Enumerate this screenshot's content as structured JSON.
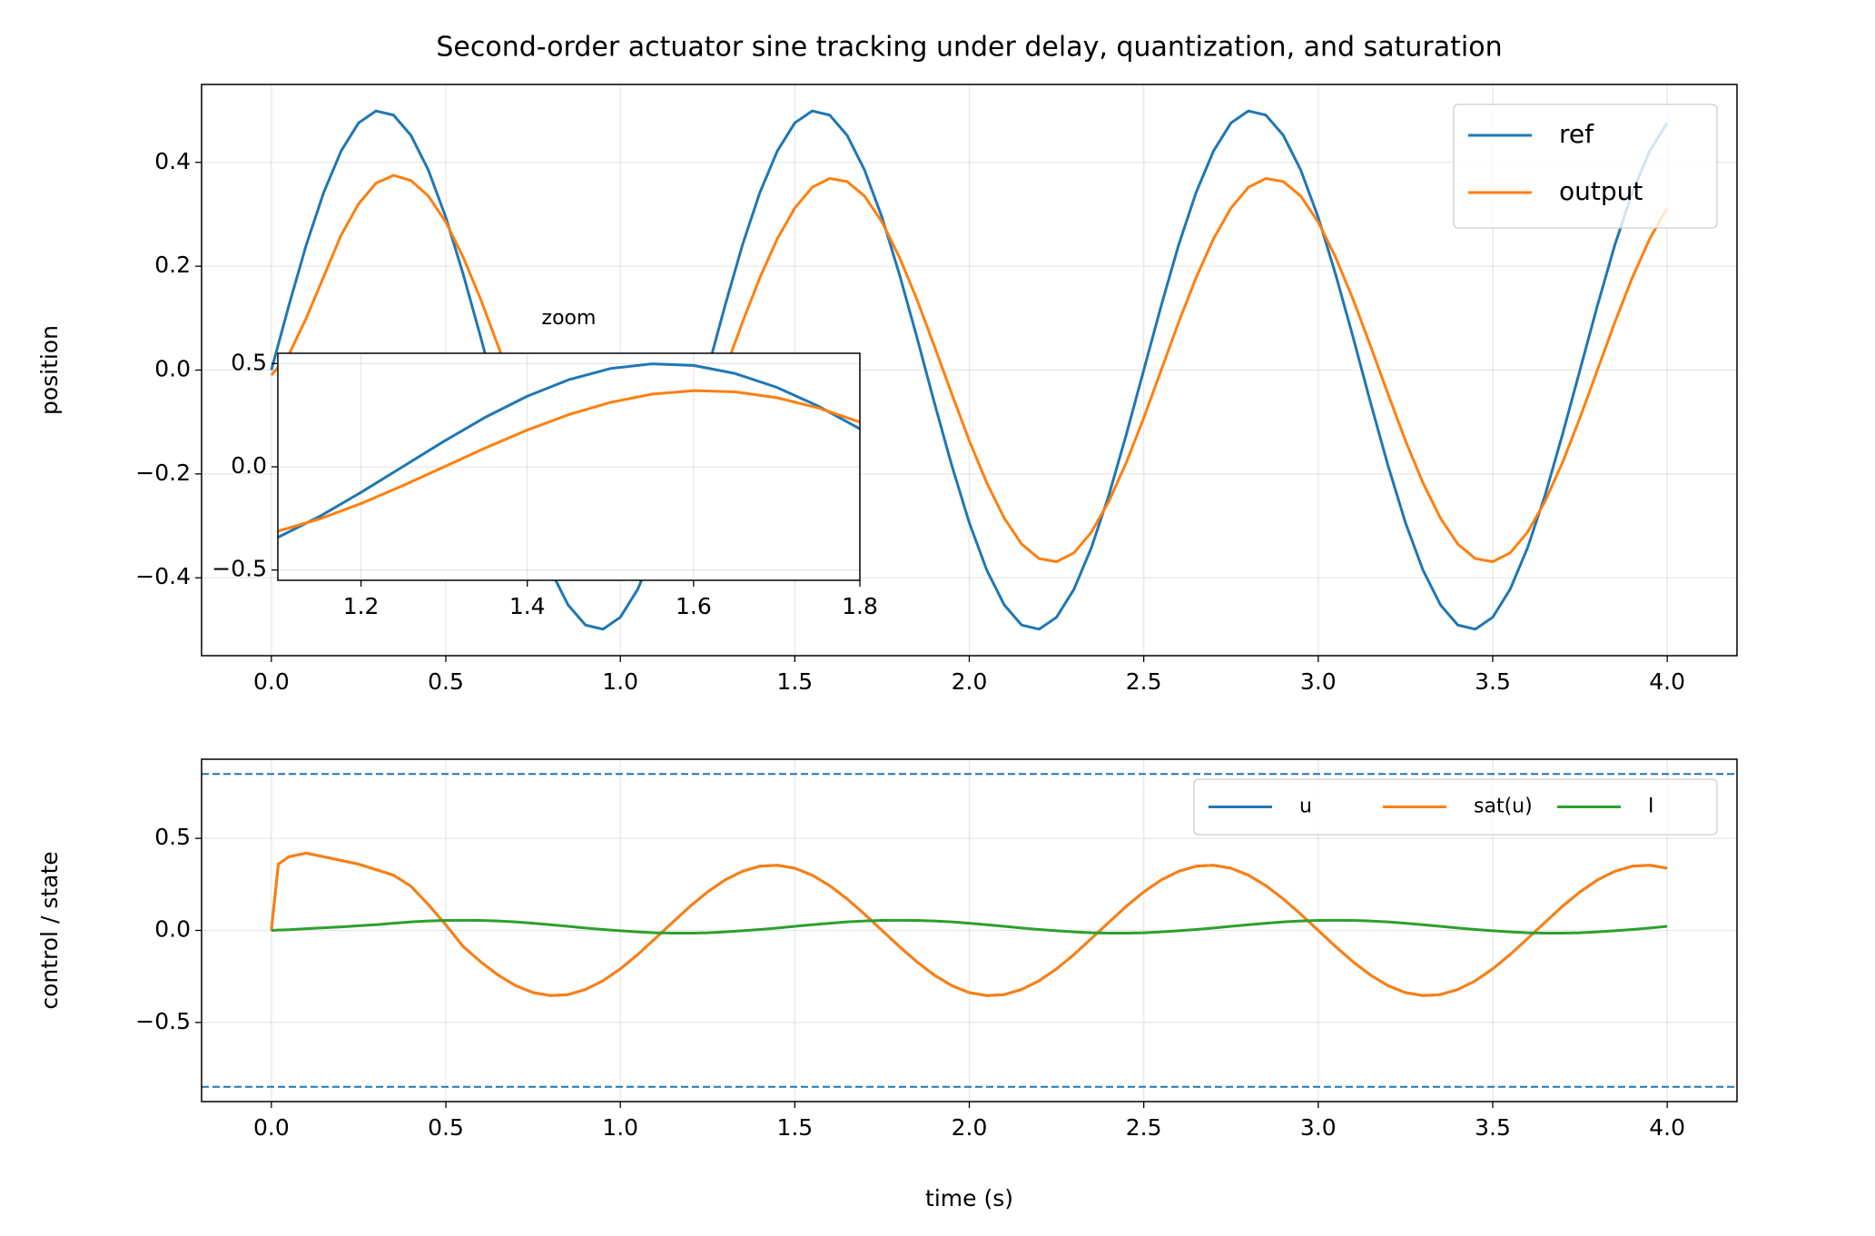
{
  "chart_data": [
    {
      "type": "line",
      "title": "Second-order actuator sine tracking under delay, quantization, and saturation",
      "ylabel": "position",
      "x": [
        0,
        0.05,
        0.1,
        0.15,
        0.2,
        0.25,
        0.3,
        0.35,
        0.4,
        0.45,
        0.5,
        0.55,
        0.6,
        0.65,
        0.7,
        0.75,
        0.8,
        0.85,
        0.9,
        0.95,
        1,
        1.05,
        1.1,
        1.15,
        1.2,
        1.25,
        1.3,
        1.35,
        1.4,
        1.45,
        1.5,
        1.55,
        1.6,
        1.65,
        1.7,
        1.75,
        1.8,
        1.85,
        1.9,
        1.95,
        2,
        2.05,
        2.1,
        2.15,
        2.2,
        2.25,
        2.3,
        2.35,
        2.4,
        2.45,
        2.5,
        2.55,
        2.6,
        2.65,
        2.7,
        2.75,
        2.8,
        2.85,
        2.9,
        2.95,
        3,
        3.05,
        3.1,
        3.15,
        3.2,
        3.25,
        3.3,
        3.35,
        3.4,
        3.45,
        3.5,
        3.55,
        3.6,
        3.65,
        3.7,
        3.75,
        3.8,
        3.85,
        3.9,
        3.95,
        4
      ],
      "series": [
        {
          "name": "ref",
          "color": "#1f77b4",
          "values": [
            0,
            0.124,
            0.241,
            0.342,
            0.422,
            0.476,
            0.499,
            0.491,
            0.452,
            0.385,
            0.294,
            0.184,
            0.063,
            -0.063,
            -0.184,
            -0.294,
            -0.385,
            -0.452,
            -0.491,
            -0.499,
            -0.476,
            -0.422,
            -0.342,
            -0.241,
            -0.124,
            0,
            0.124,
            0.241,
            0.342,
            0.422,
            0.476,
            0.499,
            0.491,
            0.452,
            0.385,
            0.294,
            0.184,
            0.063,
            -0.063,
            -0.184,
            -0.294,
            -0.385,
            -0.452,
            -0.491,
            -0.499,
            -0.476,
            -0.422,
            -0.342,
            -0.241,
            -0.124,
            0,
            0.124,
            0.241,
            0.342,
            0.422,
            0.476,
            0.499,
            0.491,
            0.452,
            0.385,
            0.294,
            0.184,
            0.063,
            -0.063,
            -0.184,
            -0.294,
            -0.385,
            -0.452,
            -0.491,
            -0.499,
            -0.476,
            -0.422,
            -0.342,
            -0.241,
            -0.124,
            0,
            0.124,
            0.241,
            0.342,
            0.422,
            0.476
          ]
        },
        {
          "name": "output",
          "color": "#ff7f0e",
          "values": [
            -0.01,
            0.03,
            0.1,
            0.18,
            0.26,
            0.32,
            0.36,
            0.375,
            0.365,
            0.335,
            0.285,
            0.217,
            0.136,
            0.046,
            -0.046,
            -0.136,
            -0.217,
            -0.285,
            -0.335,
            -0.363,
            -0.369,
            -0.352,
            -0.312,
            -0.253,
            -0.178,
            -0.092,
            0,
            0.092,
            0.178,
            0.253,
            0.312,
            0.352,
            0.369,
            0.363,
            0.335,
            0.285,
            0.217,
            0.136,
            0.046,
            -0.046,
            -0.136,
            -0.217,
            -0.285,
            -0.335,
            -0.363,
            -0.369,
            -0.352,
            -0.312,
            -0.253,
            -0.178,
            -0.092,
            0,
            0.092,
            0.178,
            0.253,
            0.312,
            0.352,
            0.369,
            0.363,
            0.335,
            0.285,
            0.217,
            0.136,
            0.046,
            -0.046,
            -0.136,
            -0.217,
            -0.285,
            -0.335,
            -0.363,
            -0.369,
            -0.352,
            -0.312,
            -0.253,
            -0.178,
            -0.092,
            0,
            0.092,
            0.178,
            0.253,
            0.312
          ]
        }
      ],
      "xlim": [
        -0.2,
        4.2
      ],
      "ylim": [
        -0.55,
        0.55
      ],
      "xticks": [
        {
          "value": 0,
          "label": "0.0"
        },
        0.5,
        {
          "value": 1,
          "label": "1.0"
        },
        1.5,
        {
          "value": 2,
          "label": "2.0"
        },
        2.5,
        {
          "value": 3,
          "label": "3.0"
        },
        3.5,
        {
          "value": 4,
          "label": "4.0"
        }
      ],
      "yticks": [
        {
          "value": -0.4,
          "label": "−0.4"
        },
        {
          "value": -0.2,
          "label": "−0.2"
        },
        {
          "value": 0,
          "label": "0.0"
        },
        0.2,
        0.4
      ],
      "grid": true,
      "legend": "upper right"
    },
    {
      "type": "line",
      "title": "zoom",
      "x": [
        1.1,
        1.15,
        1.2,
        1.25,
        1.3,
        1.35,
        1.4,
        1.45,
        1.5,
        1.55,
        1.6,
        1.65,
        1.7,
        1.75,
        1.8
      ],
      "series": [
        {
          "name": "ref",
          "color": "#1f77b4",
          "values": [
            -0.342,
            -0.241,
            -0.124,
            0,
            0.124,
            0.241,
            0.342,
            0.422,
            0.476,
            0.499,
            0.491,
            0.452,
            0.385,
            0.294,
            0.184
          ]
        },
        {
          "name": "output",
          "color": "#ff7f0e",
          "values": [
            -0.312,
            -0.253,
            -0.178,
            -0.092,
            0,
            0.092,
            0.178,
            0.253,
            0.312,
            0.352,
            0.369,
            0.363,
            0.335,
            0.285,
            0.217
          ]
        }
      ],
      "xlim": [
        1.1,
        1.8
      ],
      "ylim": [
        -0.55,
        0.55
      ],
      "xticks": [
        1.2,
        1.4,
        1.6,
        1.8
      ],
      "yticks": [
        {
          "value": -0.5,
          "label": "−0.5"
        },
        {
          "value": 0,
          "label": "0.0"
        },
        0.5
      ],
      "grid": true
    },
    {
      "type": "line",
      "xlabel": "time (s)",
      "ylabel": "control / state",
      "x": [
        0,
        0.02,
        0.05,
        0.1,
        0.15,
        0.2,
        0.25,
        0.3,
        0.35,
        0.4,
        0.45,
        0.5,
        0.55,
        0.6,
        0.65,
        0.7,
        0.75,
        0.8,
        0.85,
        0.9,
        0.95,
        1,
        1.05,
        1.1,
        1.15,
        1.2,
        1.25,
        1.3,
        1.35,
        1.4,
        1.45,
        1.5,
        1.55,
        1.6,
        1.65,
        1.7,
        1.75,
        1.8,
        1.85,
        1.9,
        1.95,
        2,
        2.05,
        2.1,
        2.15,
        2.2,
        2.25,
        2.3,
        2.35,
        2.4,
        2.45,
        2.5,
        2.55,
        2.6,
        2.65,
        2.7,
        2.75,
        2.8,
        2.85,
        2.9,
        2.95,
        3,
        3.05,
        3.1,
        3.15,
        3.2,
        3.25,
        3.3,
        3.35,
        3.4,
        3.45,
        3.5,
        3.55,
        3.6,
        3.65,
        3.7,
        3.75,
        3.8,
        3.85,
        3.9,
        3.95,
        4
      ],
      "series": [
        {
          "name": "u",
          "color": "#1f77b4",
          "values": [
            0,
            0.36,
            0.4,
            0.42,
            0.4,
            0.38,
            0.36,
            0.33,
            0.3,
            0.24,
            0.14,
            0.03,
            -0.088,
            -0.171,
            -0.243,
            -0.3,
            -0.338,
            -0.354,
            -0.349,
            -0.321,
            -0.274,
            -0.209,
            -0.131,
            -0.044,
            0.044,
            0.131,
            0.209,
            0.274,
            0.321,
            0.349,
            0.354,
            0.338,
            0.3,
            0.243,
            0.171,
            0.088,
            0,
            -0.088,
            -0.171,
            -0.243,
            -0.3,
            -0.338,
            -0.354,
            -0.349,
            -0.321,
            -0.274,
            -0.209,
            -0.131,
            -0.044,
            0.044,
            0.131,
            0.209,
            0.274,
            0.321,
            0.349,
            0.354,
            0.338,
            0.3,
            0.243,
            0.171,
            0.088,
            0,
            -0.088,
            -0.171,
            -0.243,
            -0.3,
            -0.338,
            -0.354,
            -0.349,
            -0.321,
            -0.274,
            -0.209,
            -0.131,
            -0.044,
            0.044,
            0.131,
            0.209,
            0.274,
            0.321,
            0.349,
            0.354,
            0.338
          ]
        },
        {
          "name": "sat(u)",
          "color": "#ff7f0e",
          "values": [
            0,
            0.36,
            0.4,
            0.42,
            0.4,
            0.38,
            0.36,
            0.33,
            0.3,
            0.24,
            0.14,
            0.03,
            -0.088,
            -0.171,
            -0.243,
            -0.3,
            -0.338,
            -0.354,
            -0.349,
            -0.321,
            -0.274,
            -0.209,
            -0.131,
            -0.044,
            0.044,
            0.131,
            0.209,
            0.274,
            0.321,
            0.349,
            0.354,
            0.338,
            0.3,
            0.243,
            0.171,
            0.088,
            0,
            -0.088,
            -0.171,
            -0.243,
            -0.3,
            -0.338,
            -0.354,
            -0.349,
            -0.321,
            -0.274,
            -0.209,
            -0.131,
            -0.044,
            0.044,
            0.131,
            0.209,
            0.274,
            0.321,
            0.349,
            0.354,
            0.338,
            0.3,
            0.243,
            0.171,
            0.088,
            0,
            -0.088,
            -0.171,
            -0.243,
            -0.3,
            -0.338,
            -0.354,
            -0.349,
            -0.321,
            -0.274,
            -0.209,
            -0.131,
            -0.044,
            0.044,
            0.131,
            0.209,
            0.274,
            0.321,
            0.349,
            0.354,
            0.338
          ]
        },
        {
          "name": "I",
          "color": "#2ca02c",
          "values": [
            0,
            0.002,
            0.004,
            0.009,
            0.014,
            0.019,
            0.025,
            0.031,
            0.039,
            0.046,
            0.051,
            0.054,
            0.055,
            0.054,
            0.051,
            0.046,
            0.039,
            0.031,
            0.022,
            0.013,
            0.005,
            -0.002,
            -0.008,
            -0.013,
            -0.015,
            -0.015,
            -0.013,
            -0.008,
            -0.002,
            0.005,
            0.013,
            0.022,
            0.031,
            0.039,
            0.046,
            0.051,
            0.054,
            0.055,
            0.054,
            0.051,
            0.046,
            0.039,
            0.031,
            0.022,
            0.013,
            0.005,
            -0.002,
            -0.008,
            -0.013,
            -0.015,
            -0.015,
            -0.013,
            -0.008,
            -0.002,
            0.005,
            0.013,
            0.022,
            0.031,
            0.039,
            0.046,
            0.051,
            0.054,
            0.055,
            0.054,
            0.051,
            0.046,
            0.039,
            0.031,
            0.022,
            0.013,
            0.005,
            -0.002,
            -0.008,
            -0.013,
            -0.015,
            -0.015,
            -0.013,
            -0.008,
            -0.002,
            0.005,
            0.013,
            0.022
          ]
        }
      ],
      "hlines": [
        0.85,
        -0.85
      ],
      "hline_color": "#1f77b4",
      "xlim": [
        -0.2,
        4.2
      ],
      "ylim": [
        -0.93,
        0.93
      ],
      "xticks": [
        {
          "value": 0,
          "label": "0.0"
        },
        0.5,
        {
          "value": 1,
          "label": "1.0"
        },
        1.5,
        {
          "value": 2,
          "label": "2.0"
        },
        2.5,
        {
          "value": 3,
          "label": "3.0"
        },
        3.5,
        {
          "value": 4,
          "label": "4.0"
        }
      ],
      "yticks": [
        {
          "value": -0.5,
          "label": "−0.5"
        },
        {
          "value": 0,
          "label": "0.0"
        },
        0.5
      ],
      "grid": true,
      "legend": "upper right"
    }
  ]
}
